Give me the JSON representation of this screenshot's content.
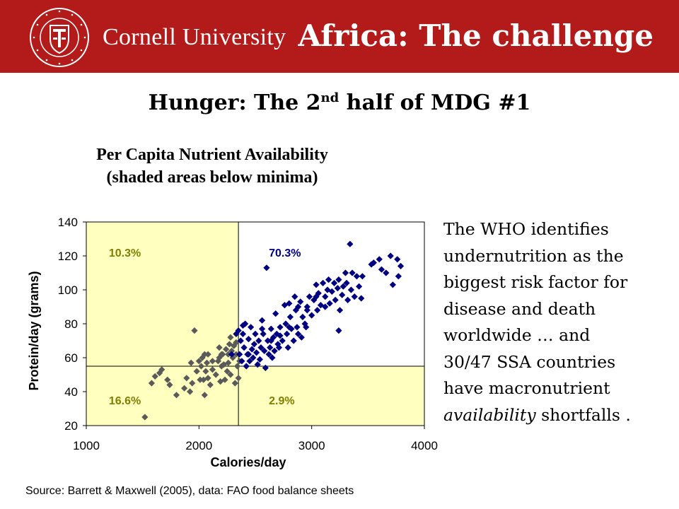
{
  "header": {
    "seal_text": "CORNELL UNIVERSITY FOUNDED A.D. 1865",
    "university": "Cornell University",
    "title": "Africa: The challenge",
    "brand_color": "#b31b1b"
  },
  "subtitle": {
    "prefix": "Hunger: The 2",
    "sup": "nd",
    "suffix": " half of MDG #1"
  },
  "body_text": {
    "lines": [
      "The WHO identifies",
      "undernutrition as the",
      "biggest risk factor for",
      "disease and death",
      "worldwide … and",
      "30/47 SSA countries",
      "have macronutrient"
    ],
    "emphasis": "availability",
    "tail": " shortfalls ."
  },
  "source": "Source: Barrett & Maxwell (2005), data: FAO food balance sheets",
  "chart_data": {
    "type": "scatter",
    "title": [
      "Per Capita Nutrient Availability",
      "(shaded areas below minima)"
    ],
    "xlabel": "Calories/day",
    "ylabel": "Protein/day (grams)",
    "xlim": [
      1000,
      4000
    ],
    "ylim": [
      20,
      140
    ],
    "xticks": [
      1000,
      2000,
      3000,
      4000
    ],
    "yticks": [
      20,
      40,
      60,
      80,
      100,
      120,
      140
    ],
    "grid": false,
    "thresholds": {
      "calories": 2350,
      "protein": 55
    },
    "shade_color": "#ffffc0",
    "quadrant_labels": [
      {
        "text": "10.3%",
        "x": 1200,
        "y": 122,
        "color": "#808000"
      },
      {
        "text": "70.3%",
        "x": 2620,
        "y": 122,
        "color": "#000080"
      },
      {
        "text": "16.6%",
        "x": 1200,
        "y": 35,
        "color": "#808000"
      },
      {
        "text": "2.9%",
        "x": 2620,
        "y": 35,
        "color": "#808000"
      }
    ],
    "series": [
      {
        "color": "#5a5a5a",
        "points": [
          [
            1520,
            25
          ],
          [
            1580,
            45
          ],
          [
            1610,
            49
          ],
          [
            1650,
            51
          ],
          [
            1670,
            53
          ],
          [
            1720,
            47
          ],
          [
            1740,
            44
          ],
          [
            1800,
            38
          ],
          [
            1870,
            42
          ],
          [
            1890,
            48
          ],
          [
            1920,
            40
          ],
          [
            1930,
            57
          ],
          [
            1940,
            45
          ],
          [
            1960,
            76
          ],
          [
            1980,
            52
          ],
          [
            2010,
            47
          ],
          [
            2020,
            55
          ],
          [
            2030,
            60
          ],
          [
            2040,
            47
          ],
          [
            2050,
            38
          ],
          [
            2060,
            52
          ],
          [
            2070,
            57
          ],
          [
            2080,
            48
          ],
          [
            2100,
            44
          ],
          [
            2120,
            53
          ],
          [
            2150,
            50
          ],
          [
            2170,
            58
          ],
          [
            2180,
            60
          ],
          [
            2190,
            46
          ],
          [
            2200,
            55
          ],
          [
            2210,
            62
          ],
          [
            2220,
            56
          ],
          [
            2230,
            47
          ],
          [
            2240,
            65
          ],
          [
            2250,
            52
          ],
          [
            2260,
            57
          ],
          [
            2270,
            68
          ],
          [
            2280,
            50
          ],
          [
            2290,
            64
          ],
          [
            2300,
            60
          ],
          [
            2310,
            67
          ],
          [
            2320,
            45
          ],
          [
            2330,
            69
          ],
          [
            2340,
            55
          ],
          [
            2350,
            48
          ],
          [
            2360,
            58
          ],
          [
            2200,
            62
          ],
          [
            2120,
            58
          ],
          [
            2080,
            62
          ],
          [
            2000,
            58
          ],
          [
            2050,
            62
          ],
          [
            2280,
            72
          ],
          [
            2180,
            66
          ],
          [
            2330,
            62
          ],
          [
            2260,
            62
          ]
        ]
      },
      {
        "color": "#000080",
        "points": [
          [
            2360,
            62
          ],
          [
            2370,
            70
          ],
          [
            2380,
            58
          ],
          [
            2390,
            74
          ],
          [
            2400,
            66
          ],
          [
            2410,
            80
          ],
          [
            2420,
            55
          ],
          [
            2430,
            62
          ],
          [
            2440,
            71
          ],
          [
            2450,
            58
          ],
          [
            2460,
            78
          ],
          [
            2470,
            65
          ],
          [
            2480,
            60
          ],
          [
            2490,
            68
          ],
          [
            2500,
            74
          ],
          [
            2510,
            63
          ],
          [
            2520,
            56
          ],
          [
            2530,
            70
          ],
          [
            2540,
            59
          ],
          [
            2550,
            66
          ],
          [
            2560,
            82
          ],
          [
            2570,
            74
          ],
          [
            2580,
            64
          ],
          [
            2590,
            54
          ],
          [
            2600,
            113
          ],
          [
            2610,
            70
          ],
          [
            2620,
            62
          ],
          [
            2630,
            66
          ],
          [
            2640,
            77
          ],
          [
            2650,
            60
          ],
          [
            2660,
            72
          ],
          [
            2670,
            64
          ],
          [
            2680,
            86
          ],
          [
            2690,
            74
          ],
          [
            2700,
            68
          ],
          [
            2710,
            66
          ],
          [
            2720,
            78
          ],
          [
            2740,
            70
          ],
          [
            2760,
            91
          ],
          [
            2770,
            80
          ],
          [
            2780,
            74
          ],
          [
            2790,
            66
          ],
          [
            2800,
            92
          ],
          [
            2810,
            84
          ],
          [
            2820,
            77
          ],
          [
            2840,
            70
          ],
          [
            2850,
            96
          ],
          [
            2860,
            88
          ],
          [
            2870,
            78
          ],
          [
            2880,
            74
          ],
          [
            2900,
            93
          ],
          [
            2910,
            72
          ],
          [
            2920,
            84
          ],
          [
            2940,
            80
          ],
          [
            2950,
            78
          ],
          [
            2960,
            90
          ],
          [
            2980,
            96
          ],
          [
            3000,
            85
          ],
          [
            3020,
            94
          ],
          [
            3040,
            103
          ],
          [
            3050,
            88
          ],
          [
            3060,
            98
          ],
          [
            3080,
            91
          ],
          [
            3100,
            104
          ],
          [
            3120,
            96
          ],
          [
            3140,
            100
          ],
          [
            3150,
            106
          ],
          [
            3160,
            92
          ],
          [
            3180,
            99
          ],
          [
            3200,
            104
          ],
          [
            3210,
            94
          ],
          [
            3240,
            106
          ],
          [
            3250,
            88
          ],
          [
            3270,
            97
          ],
          [
            3280,
            102
          ],
          [
            3300,
            110
          ],
          [
            3310,
            104
          ],
          [
            3320,
            94
          ],
          [
            3340,
            127
          ],
          [
            3350,
            100
          ],
          [
            3360,
            110
          ],
          [
            3380,
            96
          ],
          [
            3400,
            108
          ],
          [
            3420,
            102
          ],
          [
            3440,
            95
          ],
          [
            3450,
            108
          ],
          [
            3530,
            115
          ],
          [
            3550,
            116
          ],
          [
            3600,
            118
          ],
          [
            3620,
            112
          ],
          [
            3660,
            110
          ],
          [
            3700,
            120
          ],
          [
            3720,
            103
          ],
          [
            3760,
            118
          ],
          [
            3770,
            108
          ],
          [
            3790,
            114
          ],
          [
            2330,
            74
          ],
          [
            2350,
            76
          ],
          [
            2390,
            79
          ],
          [
            2290,
            62
          ],
          [
            2440,
            62
          ],
          [
            2560,
            77
          ],
          [
            2640,
            70
          ],
          [
            2720,
            73
          ],
          [
            2800,
            78
          ],
          [
            2880,
            90
          ],
          [
            2960,
            88
          ],
          [
            3040,
            96
          ],
          [
            3120,
            90
          ],
          [
            3240,
            76
          ],
          [
            3230,
            101
          ]
        ]
      }
    ]
  }
}
